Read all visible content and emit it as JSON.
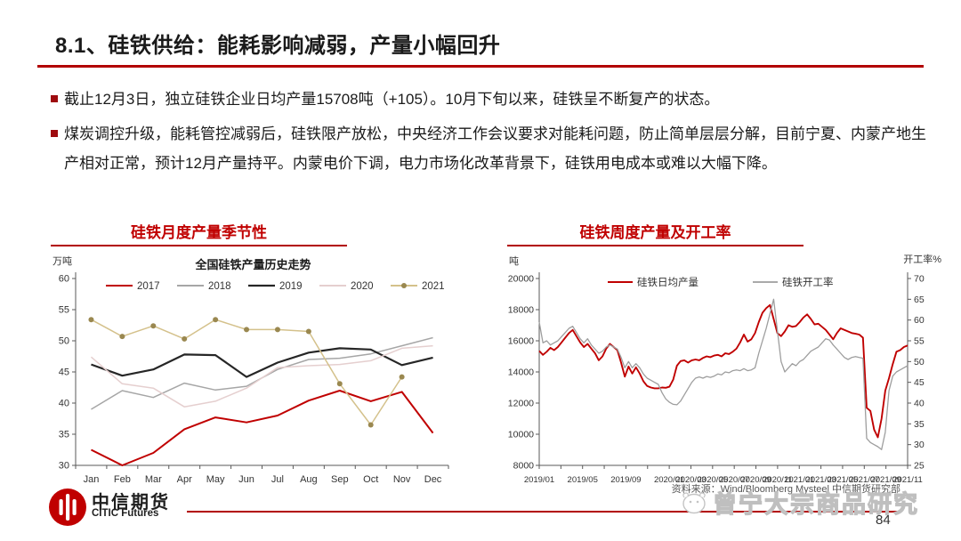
{
  "page": {
    "title": "8.1、硅铁供给：能耗影响减弱，产量小幅回升",
    "accent_color": "#C00000"
  },
  "bullets": [
    "截止12月3日，独立硅铁企业日均产量15708吨（+105）。10月下旬以来，硅铁呈不断复产的状态。",
    "煤炭调控升级，能耗管控减弱后，硅铁限产放松，中央经济工作会议要求对能耗问题，防止简单层层分解，目前宁夏、内蒙产地生产相对正常，预计12月产量持平。内蒙电价下调，电力市场化改革背景下，硅铁用电成本或难以大幅下降。"
  ],
  "footer": {
    "logo_cn": "中信期货",
    "logo_en": "CITIC Futures",
    "source": "资料来源：Wind/Bloomberg Mysteel 中信期货研究部",
    "watermark": "曾宁大宗商品研究",
    "page_number": "84"
  },
  "chart_data": [
    {
      "type": "line",
      "panel_title": "硅铁月度产量季节性",
      "title": "全国硅铁产量历史走势",
      "unit_label": "万吨",
      "grid": false,
      "legend_position": "top",
      "ylim": [
        30,
        60
      ],
      "ytick_step": 5,
      "categories": [
        "Jan",
        "Feb",
        "Mar",
        "Apr",
        "May",
        "Jun",
        "Jul",
        "Aug",
        "Sep",
        "Oct",
        "Nov",
        "Dec"
      ],
      "series": [
        {
          "name": "2017",
          "color": "#c00000",
          "width": 2.0,
          "values": [
            32.5,
            30.0,
            32.0,
            35.8,
            37.7,
            36.9,
            38.0,
            40.4,
            42.0,
            40.3,
            41.8,
            35.2
          ]
        },
        {
          "name": "2018",
          "color": "#a6a6a6",
          "width": 1.5,
          "values": [
            39.0,
            42.0,
            40.9,
            43.2,
            42.1,
            42.7,
            45.4,
            47.0,
            47.2,
            47.9,
            49.2,
            50.5
          ]
        },
        {
          "name": "2019",
          "color": "#262626",
          "width": 2.2,
          "values": [
            46.2,
            44.4,
            45.4,
            47.8,
            47.7,
            44.2,
            46.5,
            48.1,
            48.8,
            48.6,
            46.1,
            47.3
          ]
        },
        {
          "name": "2020",
          "color": "#e5cfcf",
          "width": 1.5,
          "values": [
            47.4,
            43.1,
            42.4,
            39.4,
            40.3,
            42.4,
            45.7,
            46.0,
            46.2,
            46.8,
            48.8,
            49.2
          ]
        },
        {
          "name": "2021",
          "color": "#d4c18b",
          "width": 1.5,
          "marker": "#9a8850",
          "values": [
            53.4,
            50.7,
            52.4,
            50.3,
            53.4,
            51.8,
            51.8,
            51.5,
            43.1,
            36.5,
            44.2
          ]
        }
      ]
    },
    {
      "type": "line-dual-axis",
      "panel_title": "硅铁周度产量及开工率",
      "left_unit_label": "吨",
      "right_unit_label": "开工率%",
      "grid": false,
      "left_ylim": [
        8000,
        20000
      ],
      "left_ytick_step": 2000,
      "right_ylim": [
        25,
        70
      ],
      "right_ytick_step": 5,
      "x_span_months": 34,
      "x_ticks": [
        {
          "label": "2019/01",
          "month": 0
        },
        {
          "label": "2019/05",
          "month": 4
        },
        {
          "label": "2019/09",
          "month": 8
        },
        {
          "label": "2020/01",
          "month": 12
        },
        {
          "label": "2020/03",
          "month": 14
        },
        {
          "label": "2020/05",
          "month": 16
        },
        {
          "label": "2020/07",
          "month": 18
        },
        {
          "label": "2020/09",
          "month": 20
        },
        {
          "label": "2020/11",
          "month": 22
        },
        {
          "label": "2021/01",
          "month": 24
        },
        {
          "label": "2021/03",
          "month": 26
        },
        {
          "label": "2021/05",
          "month": 28
        },
        {
          "label": "2021/07",
          "month": 30
        },
        {
          "label": "2021/09",
          "month": 32
        },
        {
          "label": "2021/11",
          "month": 34
        }
      ],
      "series": [
        {
          "name": "硅铁日均产量",
          "axis": "left",
          "color": "#c00000",
          "width": 1.9,
          "values": [
            15350,
            15100,
            15300,
            15550,
            15400,
            15600,
            15900,
            16200,
            16500,
            16700,
            16300,
            15900,
            15600,
            15800,
            15500,
            15200,
            14750,
            15000,
            15500,
            15800,
            15600,
            15400,
            14600,
            13700,
            14350,
            13900,
            14300,
            13900,
            13400,
            13100,
            13000,
            12950,
            12950,
            13000,
            12980,
            13050,
            13500,
            14400,
            14700,
            14750,
            14600,
            14750,
            14800,
            14750,
            14900,
            15000,
            14950,
            15050,
            15100,
            15000,
            15200,
            15150,
            15300,
            15500,
            15900,
            16400,
            15950,
            16100,
            16500,
            17200,
            17800,
            18100,
            18300,
            17400,
            16500,
            16300,
            16600,
            17000,
            16900,
            16950,
            17200,
            17500,
            17700,
            17400,
            17050,
            17100,
            16900,
            16700,
            16400,
            16100,
            16500,
            16800,
            16700,
            16600,
            16500,
            16450,
            16400,
            16200,
            11700,
            11500,
            10300,
            9800,
            11000,
            12800,
            13600,
            14500,
            15300,
            15400,
            15600,
            15700
          ]
        },
        {
          "name": "硅铁开工率",
          "axis": "right",
          "color": "#9e9e9e",
          "width": 1.3,
          "values": [
            59.5,
            54.5,
            55,
            54,
            54.5,
            55,
            56,
            57,
            58,
            58.5,
            57,
            55.5,
            54.5,
            55.5,
            54,
            53,
            52,
            52.5,
            53.5,
            54,
            53.5,
            53,
            51,
            48.5,
            50,
            48.5,
            49.5,
            48.5,
            47,
            46,
            45.5,
            45,
            44.5,
            42.5,
            41,
            40.2,
            39.7,
            39.6,
            40.5,
            42,
            43.5,
            45,
            46,
            46.3,
            46,
            46.4,
            46.2,
            46.5,
            47,
            46.8,
            47.5,
            47.3,
            47.8,
            48,
            47.8,
            48.3,
            47.8,
            48,
            48.5,
            52,
            55,
            58,
            61.5,
            65,
            57.5,
            50,
            47.5,
            48.5,
            49.5,
            49,
            50,
            50.5,
            51.5,
            52.5,
            53,
            53.5,
            54.5,
            55.5,
            55.2,
            54,
            53,
            52,
            51,
            50.5,
            51,
            51.2,
            51,
            50.8,
            31.5,
            30.5,
            30,
            29.5,
            28.8,
            33,
            43,
            46.5,
            47.5,
            48,
            48.5,
            49
          ]
        }
      ]
    }
  ]
}
